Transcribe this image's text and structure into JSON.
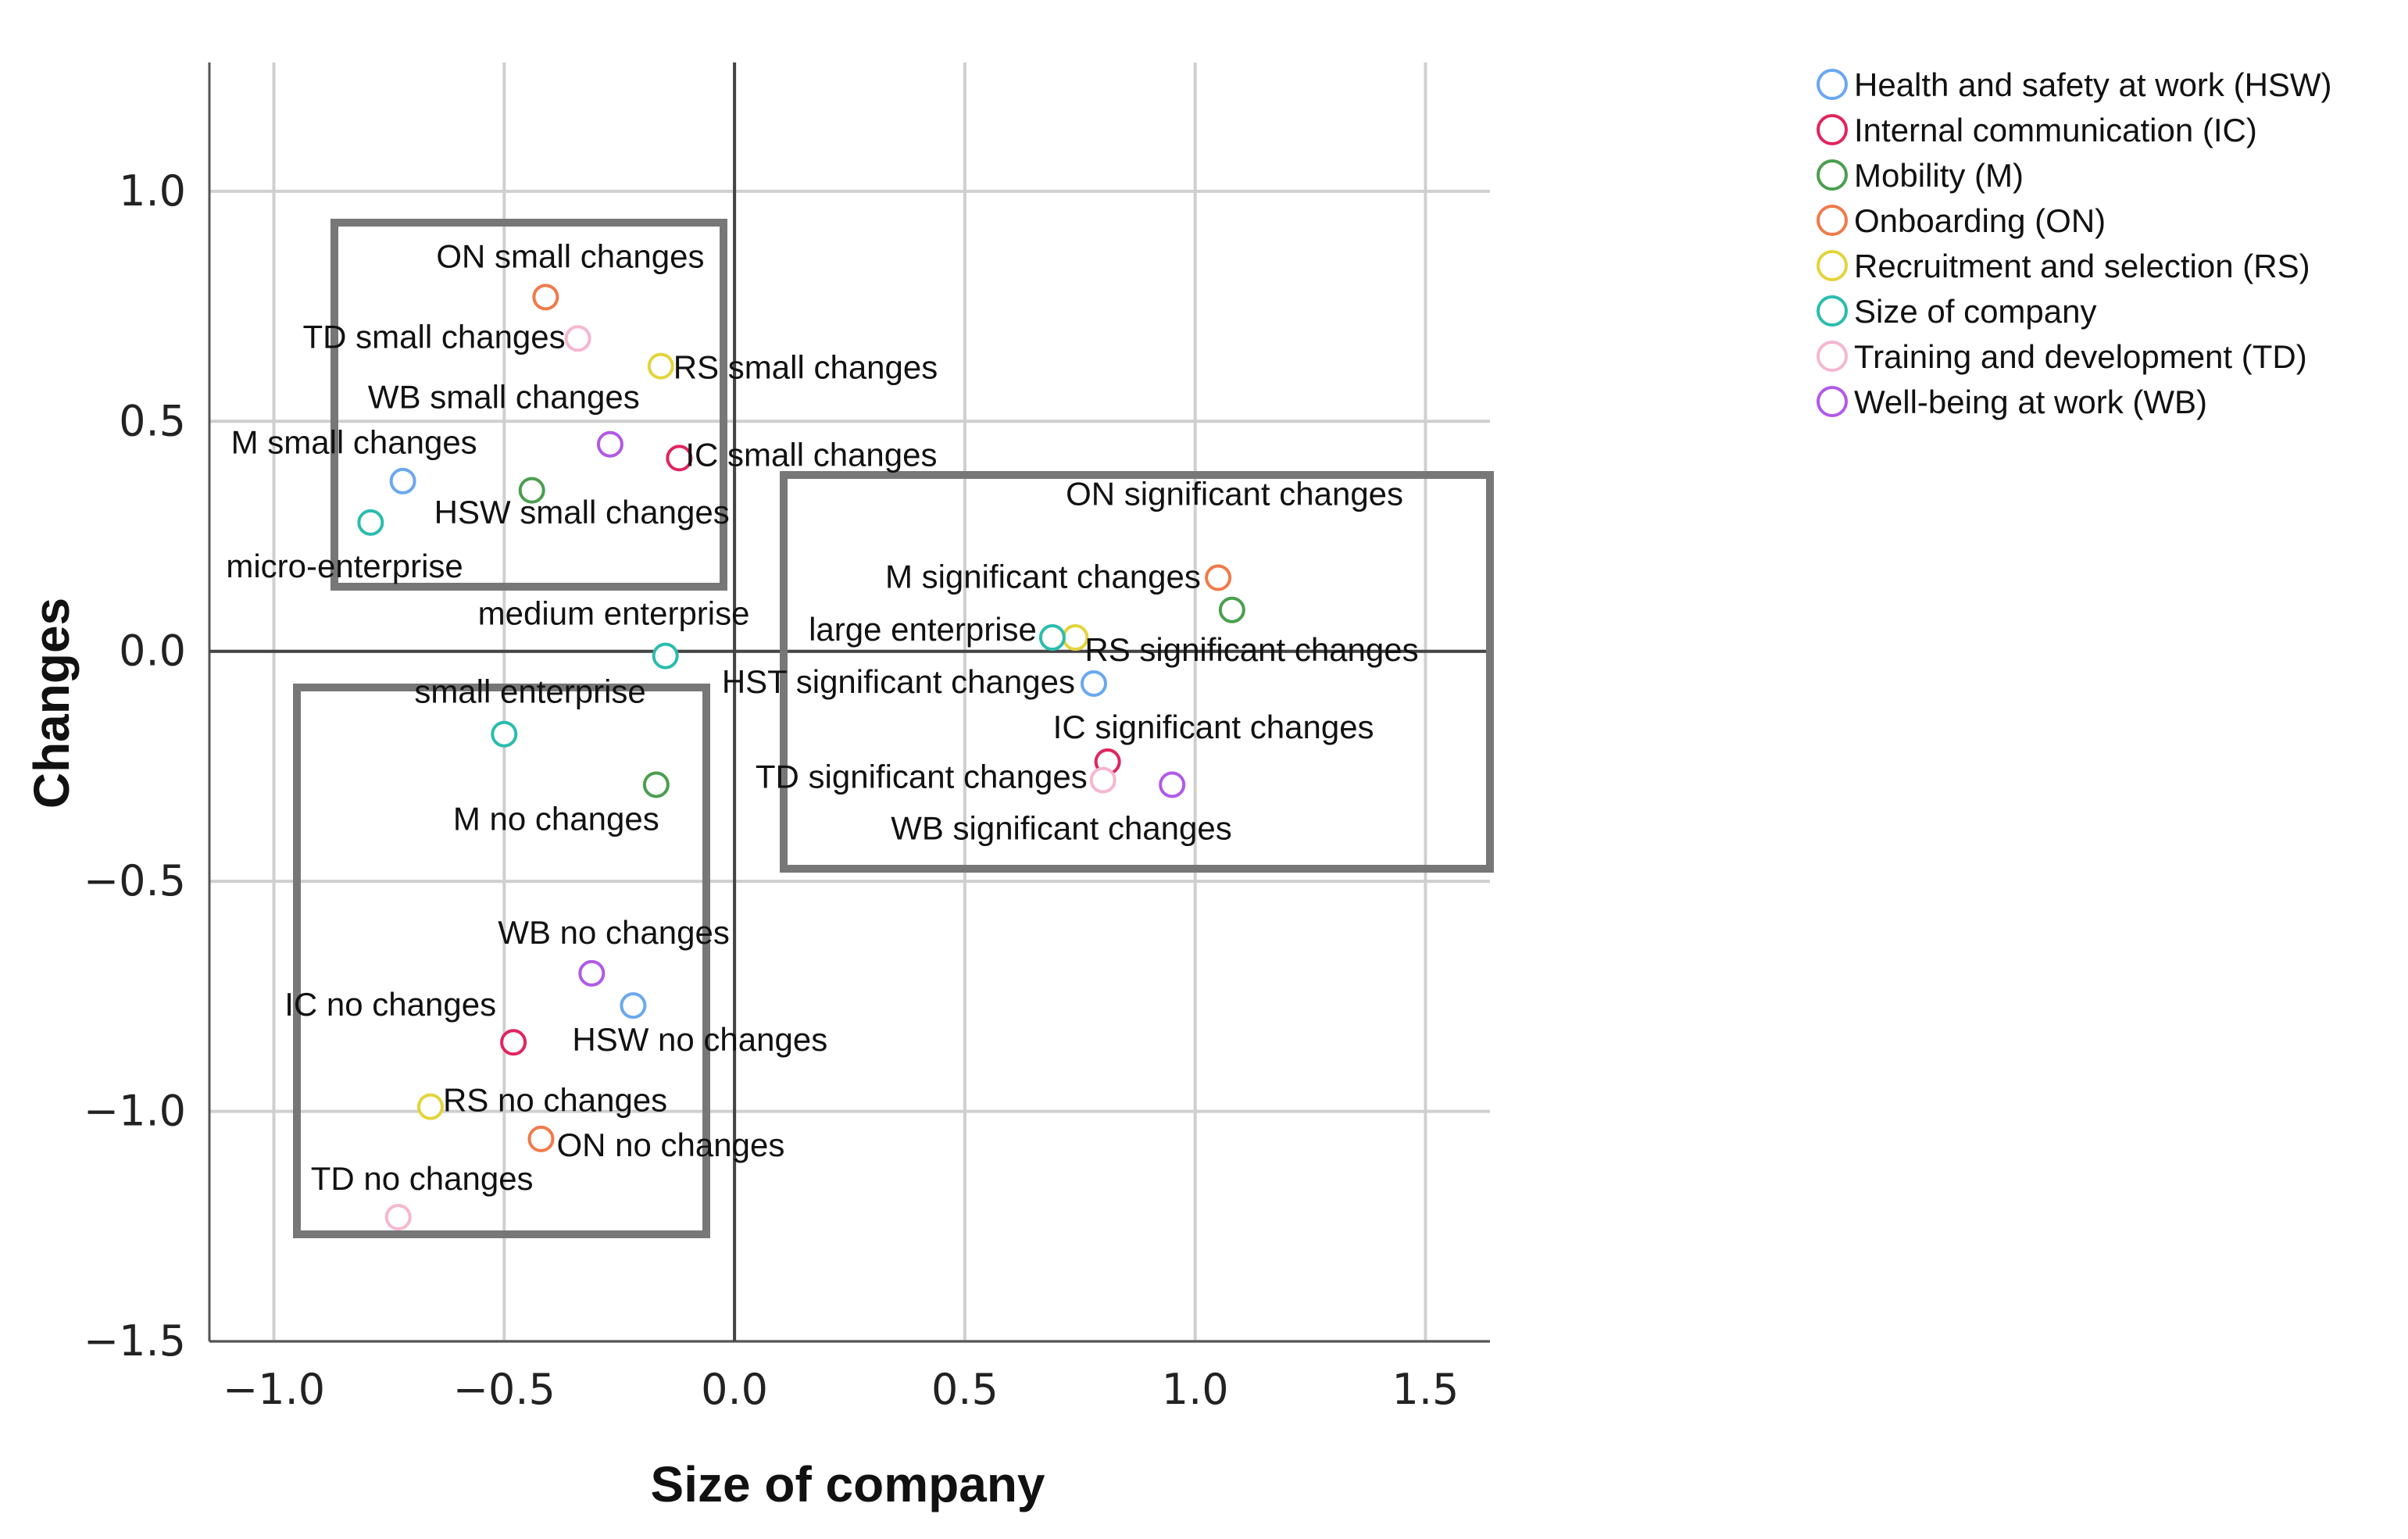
{
  "chart_data": {
    "type": "scatter",
    "title": "",
    "xlabel": "Size of company",
    "ylabel": "Changes",
    "xlim": [
      -1.14,
      1.64
    ],
    "ylim": [
      -1.5,
      1.28
    ],
    "xticks": [
      -1.0,
      -0.5,
      0.0,
      0.5,
      1.0,
      1.5
    ],
    "yticks": [
      1.0,
      0.5,
      0.0,
      -0.5,
      -1.0,
      -1.5
    ],
    "xtick_labels": [
      "−1.0",
      "−0.5",
      "0.0",
      "0.5",
      "1.0",
      "1.5"
    ],
    "ytick_labels": [
      "1.0",
      "0.5",
      "0.0",
      "−0.5",
      "−1.0",
      "−1.5"
    ],
    "grid": true,
    "legend_position": "top-right",
    "series": [
      {
        "name": "Health and safety at work (HSW)",
        "color": "#6aa8f0",
        "points": [
          {
            "x": -0.72,
            "y": 0.37,
            "label": "HSW small changes"
          },
          {
            "x": 0.78,
            "y": -0.07,
            "label": "HST significant changes"
          },
          {
            "x": -0.22,
            "y": -0.77,
            "label": "HSW no changes"
          }
        ]
      },
      {
        "name": "Internal communication (IC)",
        "color": "#e0245e",
        "points": [
          {
            "x": -0.12,
            "y": 0.42,
            "label": "IC small changes"
          },
          {
            "x": 0.81,
            "y": -0.24,
            "label": "IC significant changes"
          },
          {
            "x": -0.48,
            "y": -0.85,
            "label": "IC no changes"
          }
        ]
      },
      {
        "name": "Mobility (M)",
        "color": "#4a9e4f",
        "points": [
          {
            "x": -0.44,
            "y": 0.35,
            "label": "M small changes"
          },
          {
            "x": 1.08,
            "y": 0.09,
            "label": "M significant changes"
          },
          {
            "x": -0.17,
            "y": -0.29,
            "label": "M no changes"
          }
        ]
      },
      {
        "name": "Onboarding (ON)",
        "color": "#f07a4a",
        "points": [
          {
            "x": -0.41,
            "y": 0.77,
            "label": "ON small changes"
          },
          {
            "x": 1.05,
            "y": 0.16,
            "label": "ON significant changes"
          },
          {
            "x": -0.42,
            "y": -1.06,
            "label": "ON no changes"
          }
        ]
      },
      {
        "name": "Recruitment and selection (RS)",
        "color": "#e3d43b",
        "points": [
          {
            "x": -0.16,
            "y": 0.62,
            "label": "RS small changes"
          },
          {
            "x": 0.74,
            "y": 0.03,
            "label": "RS significant changes"
          },
          {
            "x": -0.66,
            "y": -0.99,
            "label": "RS no changes"
          }
        ]
      },
      {
        "name": "Size of company",
        "color": "#2bbcae",
        "points": [
          {
            "x": -0.79,
            "y": 0.28,
            "label": "micro-enterprise"
          },
          {
            "x": -0.15,
            "y": -0.01,
            "label": "medium enterprise"
          },
          {
            "x": 0.69,
            "y": 0.03,
            "label": "large enterprise"
          },
          {
            "x": -0.5,
            "y": -0.18,
            "label": "small enterprise"
          }
        ]
      },
      {
        "name": "Training and development (TD)",
        "color": "#f7b6d0",
        "points": [
          {
            "x": -0.34,
            "y": 0.68,
            "label": "TD small changes"
          },
          {
            "x": 0.8,
            "y": -0.28,
            "label": "TD significant changes"
          },
          {
            "x": -0.73,
            "y": -1.23,
            "label": "TD no changes"
          }
        ]
      },
      {
        "name": "Well-being at work (WB)",
        "color": "#b05ae8",
        "points": [
          {
            "x": -0.27,
            "y": 0.45,
            "label": "WB small changes"
          },
          {
            "x": 0.95,
            "y": -0.29,
            "label": "WB significant changes"
          },
          {
            "x": -0.31,
            "y": -0.7,
            "label": "WB no changes"
          }
        ]
      }
    ]
  }
}
